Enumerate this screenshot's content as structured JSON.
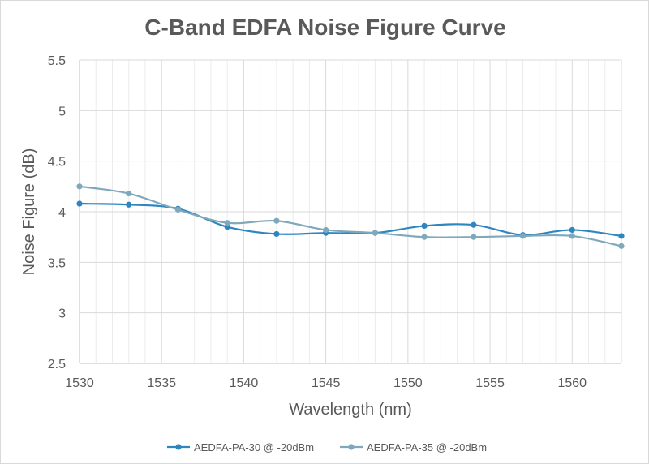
{
  "chart_data": {
    "type": "line",
    "title": "C-Band EDFA Noise Figure Curve",
    "xlabel": "Wavelength (nm)",
    "ylabel": "Noise Figure (dB)",
    "xlim": [
      1530,
      1563
    ],
    "ylim": [
      2.5,
      5.5
    ],
    "x_ticks": [
      "1530",
      "1535",
      "1540",
      "1545",
      "1550",
      "1555",
      "1560"
    ],
    "y_ticks": [
      "2.5",
      "3",
      "3.5",
      "4",
      "4.5",
      "5",
      "5.5"
    ],
    "grid": "on",
    "legend_position": "bottom",
    "smoothed": true,
    "series": [
      {
        "name": "AEDFA-PA-30 @ -20dBm",
        "color": "#2e86c1",
        "x": [
          1530,
          1533,
          1536,
          1539,
          1542,
          1545,
          1548,
          1551,
          1554,
          1557,
          1560,
          1563
        ],
        "y": [
          4.08,
          4.07,
          4.03,
          3.85,
          3.78,
          3.79,
          3.79,
          3.86,
          3.87,
          3.77,
          3.82,
          3.76
        ]
      },
      {
        "name": "AEDFA-PA-35 @ -20dBm",
        "color": "#7fa9bb",
        "x": [
          1530,
          1533,
          1536,
          1539,
          1542,
          1545,
          1548,
          1551,
          1554,
          1557,
          1560,
          1563
        ],
        "y": [
          4.25,
          4.18,
          4.02,
          3.89,
          3.91,
          3.82,
          3.79,
          3.75,
          3.75,
          3.76,
          3.76,
          3.66
        ]
      }
    ]
  }
}
